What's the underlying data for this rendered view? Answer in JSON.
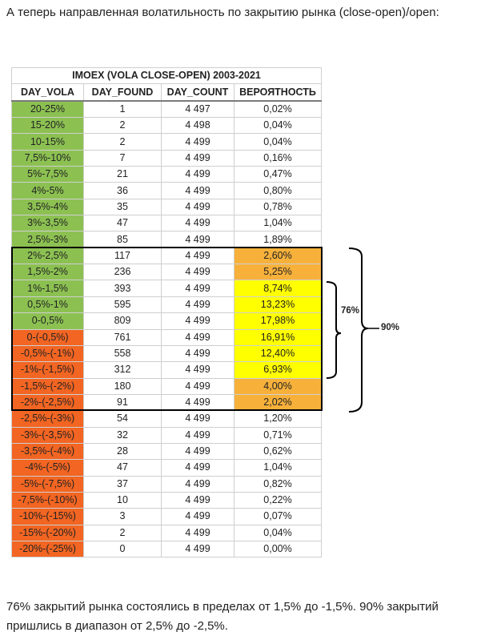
{
  "intro_text": "А теперь направленная волатильность по закрытию рынка (close-open)/open:",
  "table": {
    "title": "IMOEX (VOLA CLOSE-OPEN) 2003-2021",
    "headers": [
      "DAY_VOLA",
      "DAY_FOUND",
      "DAY_COUNT",
      "ВЕРОЯТНОСТЬ"
    ],
    "rows": [
      {
        "vola": "20-25%",
        "found": "1",
        "count": "4 497",
        "prob": "0,02%"
      },
      {
        "vola": "15-20%",
        "found": "2",
        "count": "4 498",
        "prob": "0,04%"
      },
      {
        "vola": "10-15%",
        "found": "2",
        "count": "4 499",
        "prob": "0,04%"
      },
      {
        "vola": "7,5%-10%",
        "found": "7",
        "count": "4 499",
        "prob": "0,16%"
      },
      {
        "vola": "5%-7,5%",
        "found": "21",
        "count": "4 499",
        "prob": "0,47%"
      },
      {
        "vola": "4%-5%",
        "found": "36",
        "count": "4 499",
        "prob": "0,80%"
      },
      {
        "vola": "3,5%-4%",
        "found": "35",
        "count": "4 499",
        "prob": "0,78%"
      },
      {
        "vola": "3%-3,5%",
        "found": "47",
        "count": "4 499",
        "prob": "1,04%"
      },
      {
        "vola": "2,5%-3%",
        "found": "85",
        "count": "4 499",
        "prob": "1,89%"
      },
      {
        "vola": "2%-2,5%",
        "found": "117",
        "count": "4 499",
        "prob": "2,60%"
      },
      {
        "vola": "1,5%-2%",
        "found": "236",
        "count": "4 499",
        "prob": "5,25%"
      },
      {
        "vola": "1%-1,5%",
        "found": "393",
        "count": "4 499",
        "prob": "8,74%"
      },
      {
        "vola": "0,5%-1%",
        "found": "595",
        "count": "4 499",
        "prob": "13,23%"
      },
      {
        "vola": "0-0,5%",
        "found": "809",
        "count": "4 499",
        "prob": "17,98%"
      },
      {
        "vola": "0-(-0,5%)",
        "found": "761",
        "count": "4 499",
        "prob": "16,91%"
      },
      {
        "vola": "-0,5%-(-1%)",
        "found": "558",
        "count": "4 499",
        "prob": "12,40%"
      },
      {
        "vola": "-1%-(-1,5%)",
        "found": "312",
        "count": "4 499",
        "prob": "6,93%"
      },
      {
        "vola": "-1,5%-(-2%)",
        "found": "180",
        "count": "4 499",
        "prob": "4,00%"
      },
      {
        "vola": "-2%-(-2,5%)",
        "found": "91",
        "count": "4 499",
        "prob": "2,02%"
      },
      {
        "vola": "-2,5%-(-3%)",
        "found": "54",
        "count": "4 499",
        "prob": "1,20%"
      },
      {
        "vola": "-3%-(-3,5%)",
        "found": "32",
        "count": "4 499",
        "prob": "0,71%"
      },
      {
        "vola": "-3,5%-(-4%)",
        "found": "28",
        "count": "4 499",
        "prob": "0,62%"
      },
      {
        "vola": "-4%-(-5%)",
        "found": "47",
        "count": "4 499",
        "prob": "1,04%"
      },
      {
        "vola": "-5%-(-7,5%)",
        "found": "37",
        "count": "4 499",
        "prob": "0,82%"
      },
      {
        "vola": "-7,5%-(-10%)",
        "found": "10",
        "count": "4 499",
        "prob": "0,22%"
      },
      {
        "vola": "-10%-(-15%)",
        "found": "3",
        "count": "4 499",
        "prob": "0,07%"
      },
      {
        "vola": "-15%-(-20%)",
        "found": "2",
        "count": "4 499",
        "prob": "0,04%"
      },
      {
        "vola": "-20%-(-25%)",
        "found": "0",
        "count": "4 499",
        "prob": "0,00%"
      }
    ]
  },
  "brackets": {
    "inner_label": "76%",
    "outer_label": "90%"
  },
  "colors": {
    "positive": "#8cc152",
    "negative": "#f26522",
    "band_inner": "#ffff00",
    "band_outer": "#f7b13b",
    "bracket": "#000000"
  },
  "outro_text": "76% закрытий рынка состоялись в пределах от 1,5% до -1,5%. 90% закрытий пришлись в диапазон от 2,5% до -2,5%."
}
